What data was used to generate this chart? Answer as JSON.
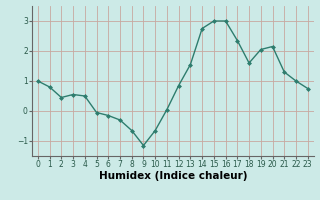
{
  "x": [
    0,
    1,
    2,
    3,
    4,
    5,
    6,
    7,
    8,
    9,
    10,
    11,
    12,
    13,
    14,
    15,
    16,
    17,
    18,
    19,
    20,
    21,
    22,
    23
  ],
  "y": [
    1.0,
    0.8,
    0.45,
    0.55,
    0.5,
    -0.05,
    -0.15,
    -0.3,
    -0.65,
    -1.15,
    -0.65,
    0.05,
    0.85,
    1.55,
    2.75,
    3.0,
    3.0,
    2.35,
    1.6,
    2.05,
    2.15,
    1.3,
    1.0,
    0.75
  ],
  "line_color": "#2e7d6e",
  "marker": "D",
  "markersize": 2.0,
  "linewidth": 1.0,
  "bg_color": "#cceae7",
  "grid_color": "#c8a8a0",
  "xlabel": "Humidex (Indice chaleur)",
  "ylabel": "",
  "ylim": [
    -1.5,
    3.5
  ],
  "xlim": [
    -0.5,
    23.5
  ],
  "yticks": [
    -1,
    0,
    1,
    2,
    3
  ],
  "xticks": [
    0,
    1,
    2,
    3,
    4,
    5,
    6,
    7,
    8,
    9,
    10,
    11,
    12,
    13,
    14,
    15,
    16,
    17,
    18,
    19,
    20,
    21,
    22,
    23
  ],
  "tick_fontsize": 5.5,
  "xlabel_fontsize": 7.5,
  "xlabel_bold": true,
  "spine_color": "#666666"
}
